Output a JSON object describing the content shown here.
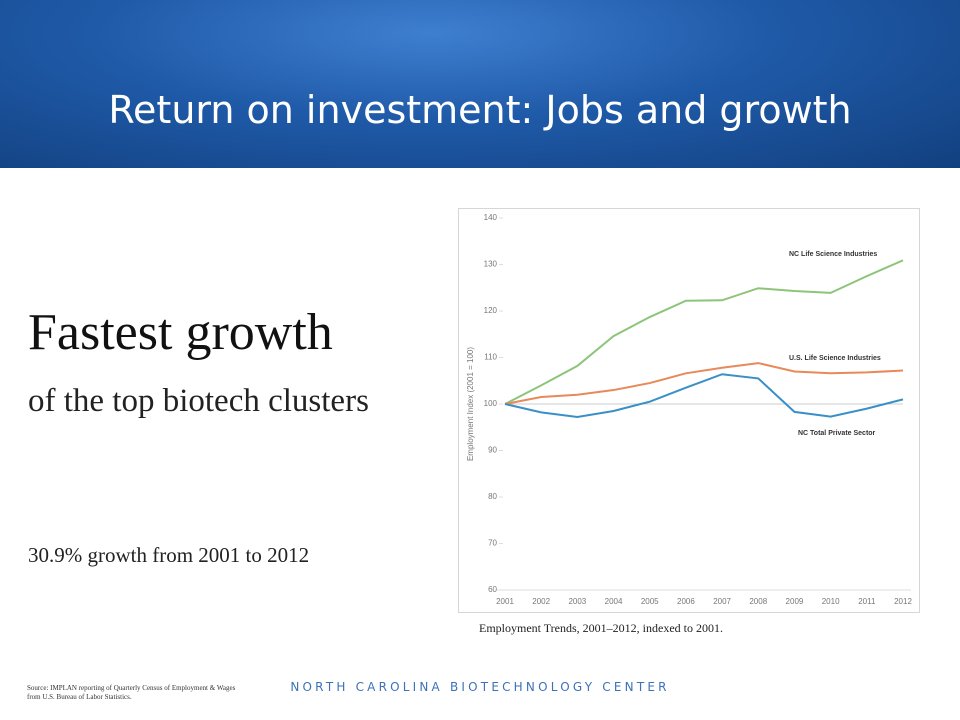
{
  "slide": {
    "title": "Return on investment: Jobs and growth",
    "headline": "Fastest growth",
    "subhead": "of the top biotech clusters",
    "stat": "30.9% growth from 2001 to 2012",
    "caption": "Employment Trends, 2001–2012, indexed to 2001.",
    "source": "Source: IMPLAN reporting of Quarterly Census of Employment & Wages from U.S. Bureau of Labor Statistics.",
    "footer": "NORTH CAROLINA BIOTECHNOLOGY CENTER"
  },
  "chart_data": {
    "type": "line",
    "y_label": "Employment Index (2001 = 100)",
    "categories": [
      "2001",
      "2002",
      "2003",
      "2004",
      "2005",
      "2006",
      "2007",
      "2008",
      "2009",
      "2010",
      "2011",
      "2012"
    ],
    "series": [
      {
        "name": "NC Life Science Industries",
        "color": "#8cc57a",
        "values": [
          100,
          104,
          108.2,
          114.6,
          118.7,
          122.2,
          122.3,
          124.9,
          124.3,
          123.9,
          127.5,
          130.9
        ]
      },
      {
        "name": "U.S. Life Science Industries",
        "color": "#e8895a",
        "values": [
          100,
          101.5,
          102,
          103,
          104.5,
          106.6,
          107.8,
          108.8,
          107,
          106.6,
          106.8,
          107.2
        ]
      },
      {
        "name": "NC Total Private Sector",
        "color": "#3a8fc7",
        "values": [
          100,
          98.2,
          97.2,
          98.5,
          100.5,
          103.5,
          106.4,
          105.5,
          98.3,
          97.3,
          99,
          101
        ]
      }
    ],
    "reference_line": 100,
    "ylim": [
      60,
      140
    ],
    "yticks": [
      60,
      70,
      80,
      90,
      100,
      110,
      120,
      130,
      140
    ],
    "grid": false
  }
}
